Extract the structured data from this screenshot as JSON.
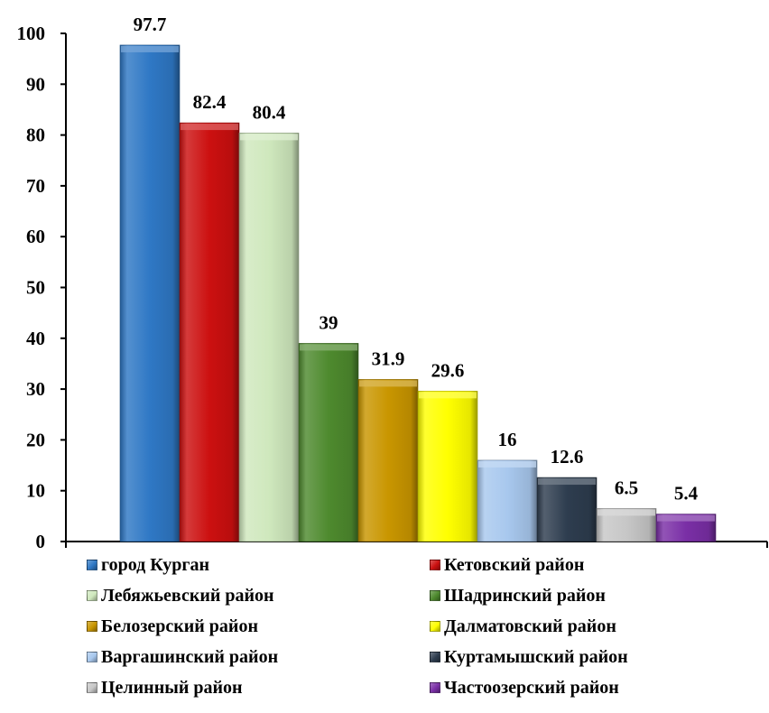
{
  "chart_data": {
    "type": "bar",
    "title": "",
    "xlabel": "",
    "ylabel": "",
    "ylim": [
      0,
      100
    ],
    "yticks": [
      0,
      10,
      20,
      30,
      40,
      50,
      60,
      70,
      80,
      90,
      100
    ],
    "grid": false,
    "legend_position": "bottom",
    "categories": [
      "город Курган",
      "Кетовский район",
      "Лебяжьевский район",
      "Шадринский район",
      "Белозерский район",
      "Далматовский район",
      "Варгашинский район",
      "Куртамышский район",
      "Целинный район",
      "Частоозерский район"
    ],
    "values": [
      97.7,
      82.4,
      80.4,
      39,
      31.9,
      29.6,
      16,
      12.6,
      6.5,
      5.4
    ],
    "value_labels": [
      "97.7",
      "82.4",
      "80.4",
      "39",
      "31.9",
      "29.6",
      "16",
      "12.6",
      "6.5",
      "5.4"
    ],
    "colors": [
      "#2f78c5",
      "#cc1010",
      "#cfe8bd",
      "#4e8a2e",
      "#c99600",
      "#ffff00",
      "#a8c8ee",
      "#2e3d4f",
      "#c7c7c7",
      "#7a2fa6"
    ]
  }
}
